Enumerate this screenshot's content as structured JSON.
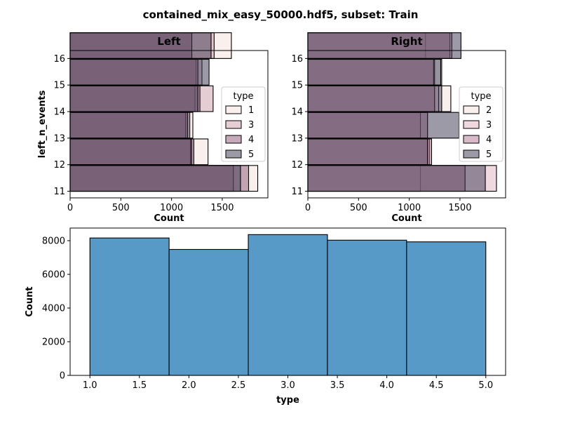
{
  "figure": {
    "suptitle": "contained_mix_easy_50000.hdf5, subset: Train"
  },
  "chart_data": [
    {
      "type": "bar",
      "orientation": "horizontal",
      "title": "Left",
      "xlabel": "Count",
      "ylabel": "left_n_events",
      "xlim": [
        0,
        1950
      ],
      "ylim": [
        10.75,
        16.3
      ],
      "x_ticks": [
        0,
        500,
        1000,
        1500
      ],
      "y_ticks": [
        11,
        12,
        13,
        14,
        15,
        16
      ],
      "categories": [
        11,
        12,
        13,
        14,
        15,
        16
      ],
      "bin_edges": [
        11,
        12,
        13,
        14,
        15,
        16
      ],
      "legend": {
        "title": "type",
        "placement": "center-right"
      },
      "series": [
        {
          "name": "1",
          "color": "#f4e2db",
          "values": [
            1850,
            1360,
            1210,
            1230,
            1240,
            1590
          ]
        },
        {
          "name": "3",
          "color": "#cc9ca9",
          "values": [
            1610,
            1200,
            1140,
            1410,
            1300,
            1420
          ]
        },
        {
          "name": "4",
          "color": "#8e5478",
          "values": [
            1760,
            1220,
            1180,
            1280,
            1260,
            1200
          ]
        },
        {
          "name": "5",
          "color": "#3a3550",
          "values": [
            1680,
            1190,
            1160,
            1260,
            1370,
            1390
          ]
        }
      ]
    },
    {
      "type": "bar",
      "orientation": "horizontal",
      "title": "Right",
      "xlabel": "Count",
      "ylabel": "",
      "xlim": [
        0,
        1950
      ],
      "ylim": [
        10.75,
        16.3
      ],
      "x_ticks": [
        0,
        500,
        1000,
        1500
      ],
      "y_ticks": [
        11,
        12,
        13,
        14,
        15,
        16
      ],
      "categories": [
        11,
        12,
        13,
        14,
        15,
        16
      ],
      "bin_edges": [
        11,
        12,
        13,
        14,
        15,
        16
      ],
      "legend": {
        "title": "type",
        "placement": "center-right"
      },
      "series": [
        {
          "name": "2",
          "color": "#f4e2db",
          "values": [
            1110,
            1190,
            1180,
            1410,
            1320,
            1160
          ]
        },
        {
          "name": "3",
          "color": "#e0b4be",
          "values": [
            1860,
            1200,
            1110,
            1290,
            1250,
            1400
          ]
        },
        {
          "name": "4",
          "color": "#b27594",
          "values": [
            1550,
            1220,
            1180,
            1250,
            1240,
            1420
          ]
        },
        {
          "name": "5",
          "color": "#3a3550",
          "values": [
            1750,
            1180,
            1490,
            1320,
            1310,
            1510
          ]
        }
      ]
    },
    {
      "type": "bar",
      "title": "",
      "xlabel": "type",
      "ylabel": "Count",
      "xlim": [
        0.8,
        5.2
      ],
      "ylim": [
        0,
        8750
      ],
      "x_ticks": [
        1.0,
        1.5,
        2.0,
        2.5,
        3.0,
        3.5,
        4.0,
        4.5,
        5.0
      ],
      "x_tick_labels": [
        "1.0",
        "1.5",
        "2.0",
        "2.5",
        "3.0",
        "3.5",
        "4.0",
        "4.5",
        "5.0"
      ],
      "y_ticks": [
        0,
        2000,
        4000,
        6000,
        8000
      ],
      "bin_edges": [
        1.0,
        1.8,
        2.6,
        3.4,
        4.2,
        5.0
      ],
      "color": "#5799c7",
      "values": [
        8160,
        7480,
        8360,
        8030,
        7930
      ]
    }
  ]
}
